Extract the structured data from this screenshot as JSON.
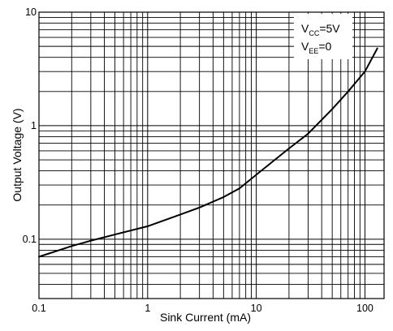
{
  "chart_data": {
    "type": "line",
    "xlabel": "Sink Current (mA)",
    "ylabel": "Output Voltage (V)",
    "x_scale": "log",
    "y_scale": "log",
    "xlim": [
      0.1,
      150
    ],
    "ylim": [
      0.03,
      10
    ],
    "grid": true,
    "x_ticks": [
      "0.1",
      "1",
      "10",
      "100"
    ],
    "y_ticks": [
      "0.1",
      "1",
      "10"
    ],
    "annotations": [
      {
        "main": "V",
        "sub": "CC",
        "rest": "=5V"
      },
      {
        "main": "V",
        "sub": "EE",
        "rest": "=0"
      }
    ],
    "series": [
      {
        "color": "#000000",
        "x": [
          0.1,
          0.2,
          0.3,
          0.5,
          1,
          2,
          3,
          5,
          7,
          10,
          20,
          30,
          50,
          70,
          100,
          130
        ],
        "y": [
          0.07,
          0.087,
          0.097,
          0.11,
          0.13,
          0.165,
          0.19,
          0.235,
          0.28,
          0.37,
          0.63,
          0.85,
          1.4,
          2.0,
          3.0,
          4.8
        ]
      }
    ]
  }
}
